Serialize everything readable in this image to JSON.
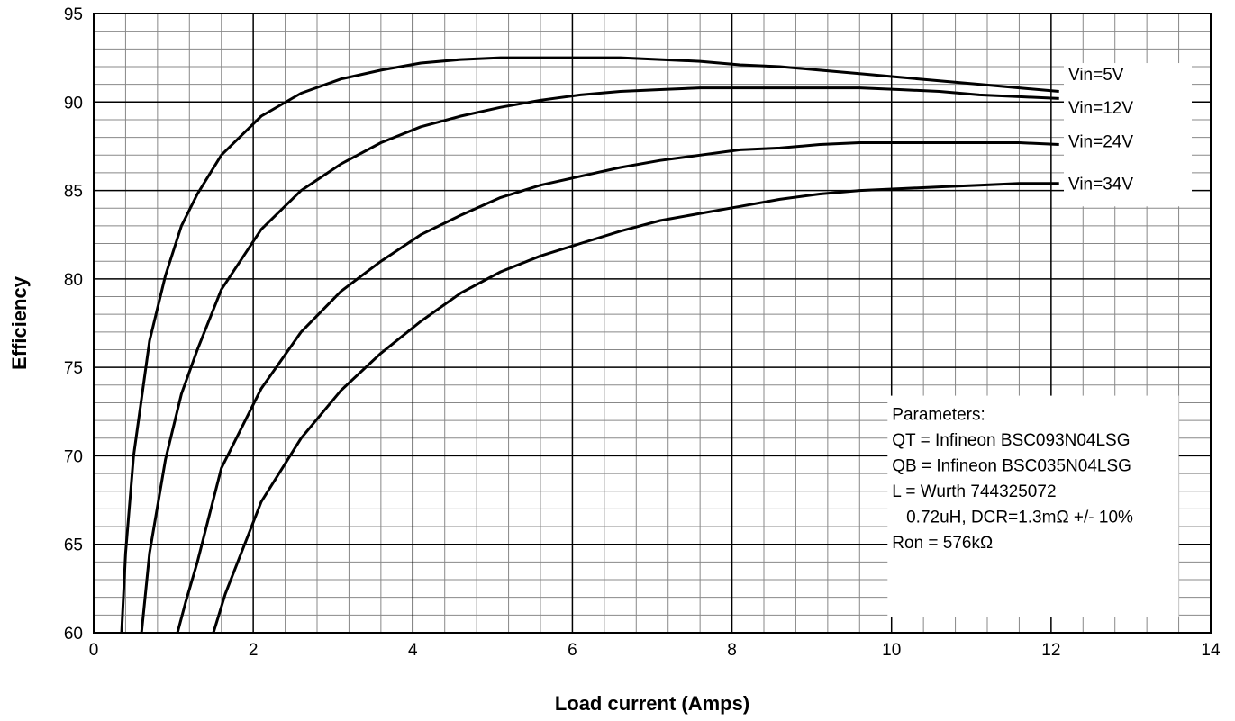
{
  "chart_data": {
    "type": "line",
    "title": "",
    "xlabel": "Load current (Amps)",
    "ylabel": "Efficiency",
    "xlim": [
      0,
      14
    ],
    "ylim": [
      60,
      95
    ],
    "x_ticks": [
      0,
      2,
      4,
      6,
      8,
      10,
      12,
      14
    ],
    "y_ticks": [
      60,
      65,
      70,
      75,
      80,
      85,
      90,
      95
    ],
    "x_tick_labels": [
      "0",
      "2",
      "4",
      "6",
      "8",
      "10",
      "12",
      "14"
    ],
    "y_tick_labels": [
      "60",
      "65",
      "70",
      "75",
      "80",
      "85",
      "90",
      "95"
    ],
    "grid": true,
    "legend": "none",
    "series": [
      {
        "name": "Vin=5V",
        "x": [
          0.35,
          0.4,
          0.5,
          0.7,
          0.9,
          1.1,
          1.3,
          1.6,
          2.1,
          2.6,
          3.1,
          3.6,
          4.1,
          4.6,
          5.1,
          5.6,
          6.1,
          6.6,
          7.1,
          7.6,
          8.1,
          8.6,
          9.1,
          9.6,
          10.1,
          10.6,
          11.1,
          11.6,
          12.1
        ],
        "y": [
          60,
          64.5,
          70,
          76.5,
          80.2,
          83,
          84.8,
          87,
          89.2,
          90.5,
          91.3,
          91.8,
          92.2,
          92.4,
          92.5,
          92.5,
          92.5,
          92.5,
          92.4,
          92.3,
          92.1,
          92,
          91.8,
          91.6,
          91.4,
          91.2,
          91,
          90.8,
          90.6
        ]
      },
      {
        "name": "Vin=12V",
        "x": [
          0.6,
          0.7,
          0.9,
          1.1,
          1.3,
          1.6,
          2.1,
          2.6,
          3.1,
          3.6,
          4.1,
          4.6,
          5.1,
          5.6,
          6.1,
          6.6,
          7.1,
          7.6,
          8.1,
          8.6,
          9.1,
          9.6,
          10.1,
          10.6,
          11.1,
          11.6,
          12.1
        ],
        "y": [
          60,
          64.5,
          69.8,
          73.5,
          76,
          79.4,
          82.8,
          85,
          86.5,
          87.7,
          88.6,
          89.2,
          89.7,
          90.1,
          90.4,
          90.6,
          90.7,
          90.8,
          90.8,
          90.8,
          90.8,
          90.8,
          90.7,
          90.6,
          90.4,
          90.3,
          90.2
        ]
      },
      {
        "name": "Vin=24V",
        "x": [
          1.05,
          1.15,
          1.3,
          1.6,
          2.1,
          2.6,
          3.1,
          3.6,
          4.1,
          4.6,
          5.1,
          5.6,
          6.1,
          6.6,
          7.1,
          7.6,
          8.1,
          8.6,
          9.1,
          9.6,
          10.1,
          10.6,
          11.1,
          11.6,
          12.1
        ],
        "y": [
          60,
          61.7,
          64,
          69.3,
          73.8,
          77,
          79.3,
          81,
          82.5,
          83.6,
          84.6,
          85.3,
          85.8,
          86.3,
          86.7,
          87,
          87.3,
          87.4,
          87.6,
          87.7,
          87.7,
          87.7,
          87.7,
          87.7,
          87.6
        ]
      },
      {
        "name": "Vin=34V",
        "x": [
          1.5,
          1.65,
          2.1,
          2.6,
          3.1,
          3.6,
          4.1,
          4.6,
          5.1,
          5.6,
          6.1,
          6.6,
          7.1,
          7.6,
          8.1,
          8.6,
          9.1,
          9.6,
          10.1,
          10.6,
          11.1,
          11.6,
          12.1
        ],
        "y": [
          60,
          62.2,
          67.4,
          71,
          73.7,
          75.8,
          77.6,
          79.2,
          80.4,
          81.3,
          82,
          82.7,
          83.3,
          83.7,
          84.1,
          84.5,
          84.8,
          85,
          85.1,
          85.2,
          85.3,
          85.4,
          85.4
        ]
      }
    ],
    "series_labels": [
      {
        "text": "Vin=5V",
        "anchor": 91.6
      },
      {
        "text": "Vin=12V",
        "anchor": 89.7
      },
      {
        "text": "Vin=24V",
        "anchor": 87.8
      },
      {
        "text": "Vin=34V",
        "anchor": 85.4
      }
    ],
    "annotation": {
      "lines": [
        "Parameters:",
        "QT = Infineon BSC093N04LSG",
        "QB = Infineon BSC035N04LSG",
        "L = Wurth 744325072",
        "   0.72uH, DCR=1.3mΩ +/- 10%",
        "Ron = 576kΩ"
      ]
    },
    "colors": {
      "line": "#000000",
      "grid_minor": "#888888",
      "grid_major": "#000000",
      "background": "#ffffff"
    }
  }
}
